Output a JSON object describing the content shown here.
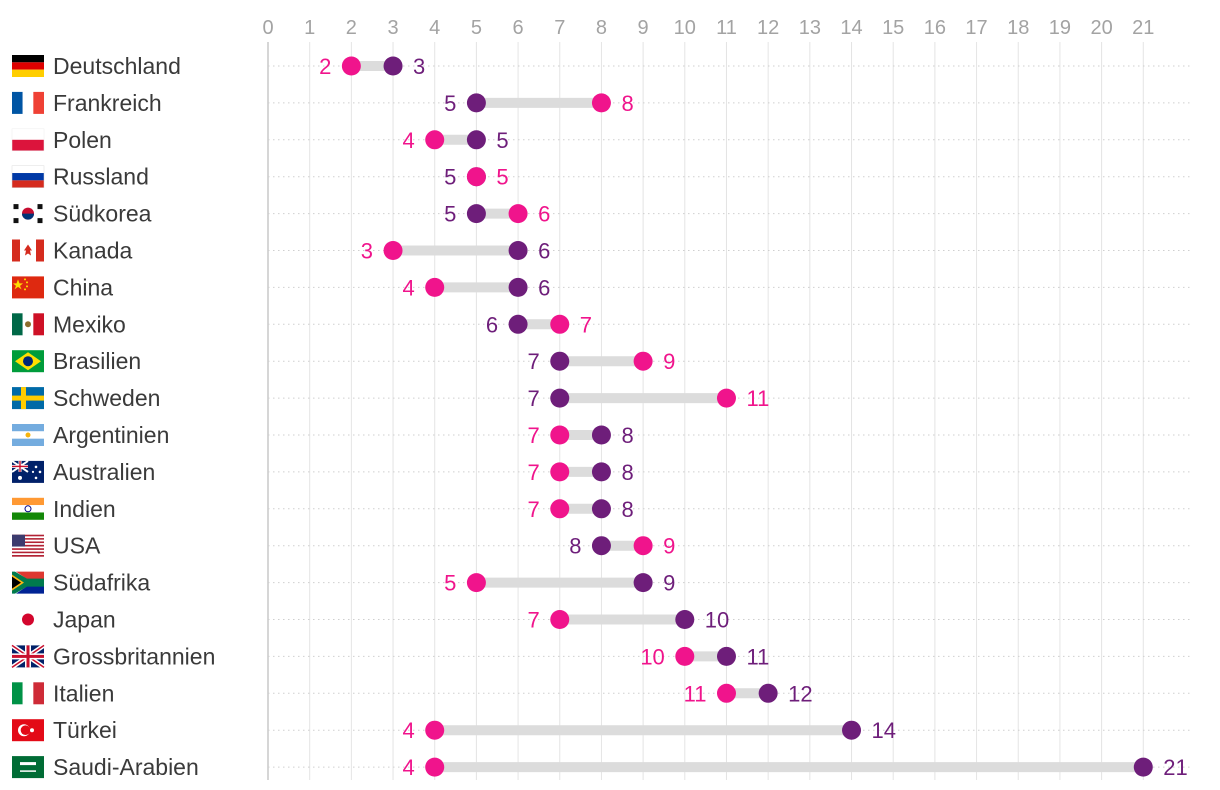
{
  "chart_data": {
    "type": "dumbbell",
    "title": "",
    "xlabel": "",
    "ylabel": "",
    "xlim": [
      0,
      21
    ],
    "x_ticks": [
      0,
      1,
      2,
      3,
      4,
      5,
      6,
      7,
      8,
      9,
      10,
      11,
      12,
      13,
      14,
      15,
      16,
      17,
      18,
      19,
      20,
      21
    ],
    "grid": true,
    "series": [
      {
        "name": "pink",
        "color": "#f0148c"
      },
      {
        "name": "purple",
        "color": "#6e1e7a"
      }
    ],
    "rows": [
      {
        "country": "Deutschland",
        "flag": "de",
        "pink": 2,
        "purple": 3
      },
      {
        "country": "Frankreich",
        "flag": "fr",
        "pink": 8,
        "purple": 5
      },
      {
        "country": "Polen",
        "flag": "pl",
        "pink": 4,
        "purple": 5
      },
      {
        "country": "Russland",
        "flag": "ru",
        "pink": 5,
        "purple": 5
      },
      {
        "country": "Südkorea",
        "flag": "kr",
        "pink": 6,
        "purple": 5
      },
      {
        "country": "Kanada",
        "flag": "ca",
        "pink": 3,
        "purple": 6
      },
      {
        "country": "China",
        "flag": "cn",
        "pink": 4,
        "purple": 6
      },
      {
        "country": "Mexiko",
        "flag": "mx",
        "pink": 7,
        "purple": 6
      },
      {
        "country": "Brasilien",
        "flag": "br",
        "pink": 9,
        "purple": 7
      },
      {
        "country": "Schweden",
        "flag": "se",
        "pink": 11,
        "purple": 7
      },
      {
        "country": "Argentinien",
        "flag": "ar",
        "pink": 7,
        "purple": 8
      },
      {
        "country": "Australien",
        "flag": "au",
        "pink": 7,
        "purple": 8
      },
      {
        "country": "Indien",
        "flag": "in",
        "pink": 7,
        "purple": 8
      },
      {
        "country": "USA",
        "flag": "us",
        "pink": 9,
        "purple": 8
      },
      {
        "country": "Südafrika",
        "flag": "za",
        "pink": 5,
        "purple": 9
      },
      {
        "country": "Japan",
        "flag": "jp",
        "pink": 7,
        "purple": 10
      },
      {
        "country": "Grossbritannien",
        "flag": "gb",
        "pink": 10,
        "purple": 11
      },
      {
        "country": "Italien",
        "flag": "it",
        "pink": 11,
        "purple": 12
      },
      {
        "country": "Türkei",
        "flag": "tr",
        "pink": 4,
        "purple": 14
      },
      {
        "country": "Saudi-Arabien",
        "flag": "sa",
        "pink": 4,
        "purple": 21
      }
    ]
  }
}
